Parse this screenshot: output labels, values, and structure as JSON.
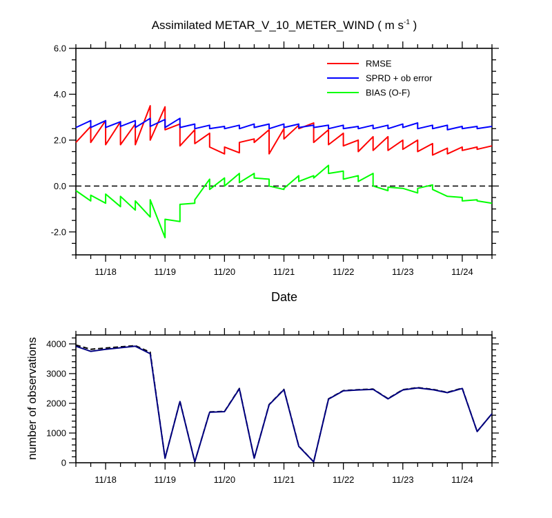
{
  "title_main": "Assimilated METAR_V_10_METER_WIND ( m s",
  "title_sup": "-1",
  "title_end": " )",
  "colors": {
    "rmse": "#ff0000",
    "sprd": "#0000ff",
    "bias": "#00ff00",
    "zero": "#000000",
    "obs_used": "#000080"
  },
  "chart_data": [
    {
      "type": "line",
      "xlabel": "Date",
      "ylabel": "",
      "x_ticks": [
        1,
        2,
        3,
        4,
        5,
        6,
        7
      ],
      "x_tick_labels": [
        "11/18",
        "11/19",
        "11/20",
        "11/21",
        "11/22",
        "11/23",
        "11/24"
      ],
      "xlim": [
        0.5,
        7.5
      ],
      "ylim": [
        -3,
        6
      ],
      "y_ticks": [
        -2,
        0,
        2,
        4,
        6
      ],
      "y_tick_labels": [
        "-2.0",
        "0.0",
        "2.0",
        "4.0",
        "6.0"
      ],
      "zero_line": true,
      "legend": "top-right",
      "series": [
        {
          "name": "RMSE",
          "key": "rmse",
          "x": [
            0.5,
            0.75,
            0.75,
            1.0,
            1.0,
            1.25,
            1.25,
            1.5,
            1.5,
            1.75,
            1.75,
            2.0,
            2.0,
            2.25,
            2.25,
            2.5,
            2.5,
            2.75,
            2.75,
            3.0,
            3.0,
            3.25,
            3.25,
            3.5,
            3.5,
            3.75,
            3.75,
            4.0,
            4.0,
            4.25,
            4.25,
            4.5,
            4.5,
            4.75,
            4.75,
            5.0,
            5.0,
            5.25,
            5.25,
            5.5,
            5.5,
            5.75,
            5.75,
            6.0,
            6.0,
            6.25,
            6.25,
            6.5,
            6.5,
            6.75,
            6.75,
            7.0,
            7.0,
            7.25,
            7.25,
            7.5
          ],
          "y": [
            1.9,
            2.6,
            1.9,
            2.85,
            1.8,
            2.8,
            1.8,
            2.7,
            1.8,
            3.5,
            2.0,
            3.45,
            2.45,
            2.7,
            1.75,
            2.45,
            1.85,
            2.3,
            1.7,
            1.4,
            1.7,
            1.45,
            1.9,
            2.05,
            1.9,
            2.45,
            1.4,
            2.5,
            2.05,
            2.65,
            2.5,
            2.75,
            1.9,
            2.45,
            1.8,
            2.3,
            1.75,
            2.0,
            1.5,
            2.15,
            1.55,
            2.15,
            1.55,
            2.0,
            1.6,
            2.0,
            1.5,
            1.85,
            1.35,
            1.65,
            1.4,
            1.7,
            1.55,
            1.7,
            1.6,
            1.75
          ]
        },
        {
          "name": "SPRD + ob error",
          "key": "sprd",
          "x": [
            0.5,
            0.75,
            0.75,
            1.0,
            1.0,
            1.25,
            1.25,
            1.5,
            1.5,
            1.75,
            1.75,
            2.0,
            2.0,
            2.25,
            2.25,
            2.5,
            2.5,
            2.75,
            2.75,
            3.0,
            3.0,
            3.25,
            3.25,
            3.5,
            3.5,
            3.75,
            3.75,
            4.0,
            4.0,
            4.25,
            4.25,
            4.5,
            4.5,
            4.75,
            4.75,
            5.0,
            5.0,
            5.25,
            5.25,
            5.5,
            5.5,
            5.75,
            5.75,
            6.0,
            6.0,
            6.25,
            6.25,
            6.5,
            6.5,
            6.75,
            6.75,
            7.0,
            7.0,
            7.25,
            7.25,
            7.5
          ],
          "y": [
            2.55,
            2.85,
            2.55,
            2.85,
            2.55,
            2.8,
            2.6,
            2.85,
            2.55,
            2.95,
            2.6,
            2.9,
            2.55,
            2.95,
            2.55,
            2.7,
            2.5,
            2.65,
            2.5,
            2.6,
            2.5,
            2.65,
            2.5,
            2.7,
            2.55,
            2.7,
            2.5,
            2.7,
            2.55,
            2.7,
            2.55,
            2.65,
            2.55,
            2.65,
            2.5,
            2.65,
            2.5,
            2.6,
            2.5,
            2.65,
            2.5,
            2.65,
            2.5,
            2.7,
            2.55,
            2.75,
            2.5,
            2.65,
            2.5,
            2.65,
            2.45,
            2.6,
            2.5,
            2.6,
            2.5,
            2.6
          ]
        },
        {
          "name": "BIAS (O-F)",
          "key": "bias",
          "x": [
            0.5,
            0.75,
            0.75,
            1.0,
            1.0,
            1.25,
            1.25,
            1.5,
            1.5,
            1.75,
            1.75,
            2.0,
            2.0,
            2.25,
            2.25,
            2.5,
            2.5,
            2.75,
            2.75,
            3.0,
            3.0,
            3.25,
            3.25,
            3.5,
            3.5,
            3.75,
            3.75,
            4.0,
            4.0,
            4.25,
            4.25,
            4.5,
            4.5,
            4.75,
            4.75,
            5.0,
            5.0,
            5.25,
            5.25,
            5.5,
            5.5,
            5.75,
            5.75,
            6.0,
            6.0,
            6.25,
            6.25,
            6.5,
            6.5,
            6.75,
            6.75,
            7.0,
            7.0,
            7.25,
            7.25,
            7.5
          ],
          "y": [
            -0.2,
            -0.65,
            -0.4,
            -0.75,
            -0.35,
            -0.9,
            -0.45,
            -1.05,
            -0.65,
            -1.35,
            -0.6,
            -2.25,
            -1.45,
            -1.55,
            -0.8,
            -0.75,
            -0.6,
            0.3,
            -0.15,
            0.35,
            0.0,
            0.55,
            0.15,
            0.55,
            0.35,
            0.3,
            0.0,
            -0.15,
            -0.1,
            0.45,
            0.2,
            0.45,
            0.35,
            0.9,
            0.55,
            0.65,
            0.3,
            0.45,
            0.2,
            0.55,
            0.0,
            -0.2,
            -0.05,
            -0.1,
            -0.1,
            -0.3,
            -0.1,
            0.05,
            -0.15,
            -0.45,
            -0.45,
            -0.5,
            -0.65,
            -0.6,
            -0.65,
            -0.75
          ]
        }
      ]
    },
    {
      "type": "line",
      "xlabel": "",
      "ylabel": "number of observations",
      "x_ticks": [
        1,
        2,
        3,
        4,
        5,
        6,
        7
      ],
      "x_tick_labels": [
        "11/18",
        "11/19",
        "11/20",
        "11/21",
        "11/22",
        "11/23",
        "11/24"
      ],
      "xlim": [
        0.5,
        7.5
      ],
      "ylim": [
        0,
        4300
      ],
      "y_ticks": [
        0,
        1000,
        2000,
        3000,
        4000
      ],
      "y_tick_labels": [
        "0",
        "1000",
        "2000",
        "3000",
        "4000"
      ],
      "series": [
        {
          "key": "obs_possible",
          "style": "dashed",
          "x": [
            0.5,
            0.75,
            1.0,
            1.25,
            1.5,
            1.75,
            2.0,
            2.25,
            2.5,
            2.75,
            3.0,
            3.25,
            3.5,
            3.75,
            4.0,
            4.25,
            4.5,
            4.75,
            5.0,
            5.25,
            5.5,
            5.75,
            6.0,
            6.25,
            6.5,
            6.75,
            7.0,
            7.25,
            7.5
          ],
          "y": [
            3960,
            3820,
            3860,
            3900,
            3940,
            3720,
            150,
            2070,
            30,
            1710,
            1730,
            2500,
            150,
            1960,
            2470,
            560,
            30,
            2150,
            2430,
            2460,
            2480,
            2160,
            2460,
            2530,
            2470,
            2370,
            2510,
            1050,
            1650
          ]
        },
        {
          "key": "obs_used",
          "style": "solid",
          "x": [
            0.5,
            0.75,
            1.0,
            1.25,
            1.5,
            1.75,
            2.0,
            2.25,
            2.5,
            2.75,
            3.0,
            3.25,
            3.5,
            3.75,
            4.0,
            4.25,
            4.5,
            4.75,
            5.0,
            5.25,
            5.5,
            5.75,
            6.0,
            6.25,
            6.5,
            6.75,
            7.0,
            7.25,
            7.5
          ],
          "y": [
            3920,
            3750,
            3820,
            3870,
            3920,
            3670,
            150,
            2060,
            30,
            1700,
            1720,
            2490,
            150,
            1950,
            2460,
            550,
            30,
            2140,
            2420,
            2450,
            2470,
            2150,
            2450,
            2520,
            2460,
            2360,
            2500,
            1050,
            1650
          ]
        }
      ]
    }
  ]
}
